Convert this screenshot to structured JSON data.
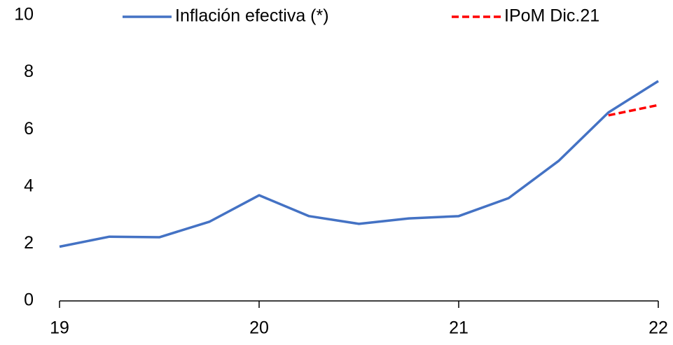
{
  "chart_data": {
    "type": "line",
    "x": [
      19,
      19.25,
      19.5,
      19.75,
      20,
      20.25,
      20.5,
      20.75,
      21,
      21.25,
      21.5,
      21.75,
      22
    ],
    "series": [
      {
        "name": "Inflación efectiva (*)",
        "color": "#4472c4",
        "dash": false,
        "values": [
          1.9,
          2.25,
          2.23,
          2.77,
          3.7,
          2.97,
          2.7,
          2.89,
          2.97,
          3.6,
          4.9,
          6.6,
          7.7
        ]
      },
      {
        "name": "IPoM Dic.21",
        "color": "#ff0000",
        "dash": true,
        "values": [
          null,
          null,
          null,
          null,
          null,
          null,
          null,
          null,
          null,
          null,
          null,
          6.5,
          6.86
        ]
      }
    ],
    "xlim": [
      19,
      22
    ],
    "xticks": [
      19,
      20,
      21,
      22
    ],
    "ylim": [
      0,
      10
    ],
    "yticks": [
      0,
      2,
      4,
      6,
      8,
      10
    ],
    "grid": false,
    "legend": "top"
  }
}
